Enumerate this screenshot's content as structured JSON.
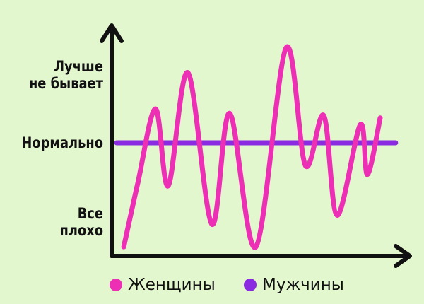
{
  "chart_data": {
    "type": "line",
    "ylim": [
      0,
      10
    ],
    "xlim": [
      0,
      100
    ],
    "yticks": [
      {
        "value": 1.5,
        "label": "Все\nплохо"
      },
      {
        "value": 5,
        "label": "Нормально"
      },
      {
        "value": 8,
        "label": "Лучше\nне бывает"
      }
    ],
    "legend": "bottom",
    "series": [
      {
        "name": "Женщины",
        "color": "#ec2fb4",
        "x": [
          3.6,
          8.3,
          14.3,
          18.6,
          25.2,
          33.3,
          39.3,
          48.1,
          58.3,
          64.8,
          71,
          75.5,
          83.3,
          85.7,
          90
        ],
        "values": [
          0.4,
          3.2,
          6.5,
          3.1,
          8.1,
          1.4,
          6.3,
          0.4,
          9.2,
          4,
          6.2,
          1.8,
          5.8,
          3.6,
          6.1
        ]
      },
      {
        "name": "Мужчины",
        "color": "#8a2be2",
        "x": [
          1.2,
          95.2
        ],
        "values": [
          5,
          5
        ]
      }
    ]
  }
}
